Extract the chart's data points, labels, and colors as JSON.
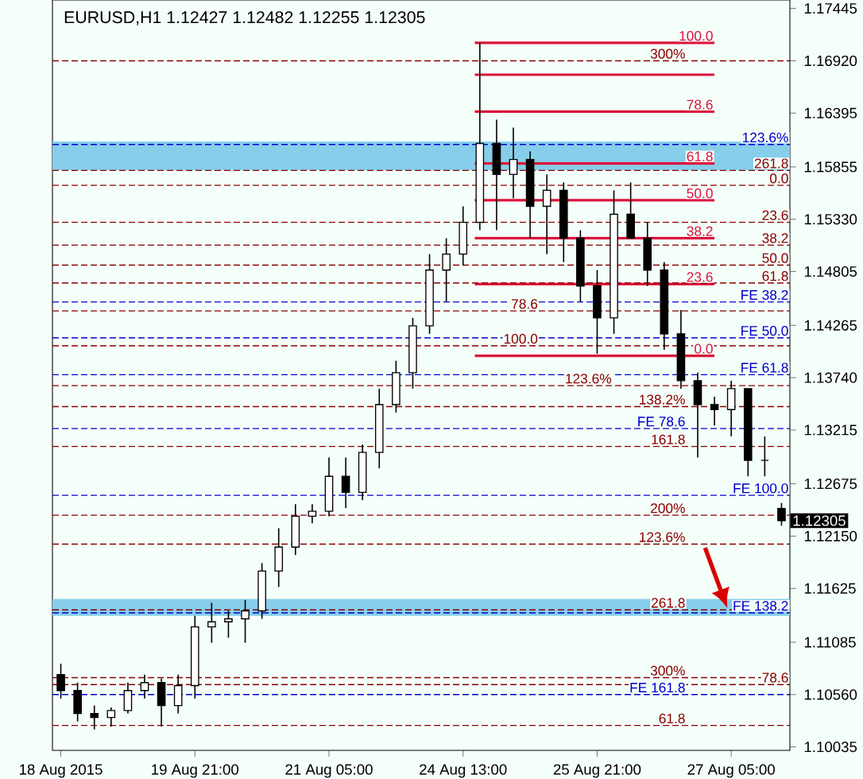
{
  "chart_data": {
    "type": "candlestick",
    "title": "EURUSD,H1  1.12427 1.12482 1.12255 1.12305",
    "categories": [
      "18 Aug 2015",
      null,
      null,
      null,
      null,
      null,
      null,
      null,
      "19 Aug 21:00",
      null,
      null,
      null,
      null,
      null,
      null,
      null,
      "21 Aug 05:00",
      null,
      null,
      null,
      null,
      null,
      null,
      null,
      "24 Aug 13:00",
      null,
      null,
      null,
      null,
      null,
      null,
      null,
      "25 Aug 21:00",
      null,
      null,
      null,
      null,
      null,
      null,
      null,
      "27 Aug 05:00",
      null,
      null,
      null
    ],
    "ohlc": [
      [
        1.1076,
        1.1087,
        1.1052,
        1.106
      ],
      [
        1.106,
        1.1068,
        1.1029,
        1.1037
      ],
      [
        1.1037,
        1.1045,
        1.1021,
        1.1033
      ],
      [
        1.1033,
        1.1043,
        1.1024,
        1.104
      ],
      [
        1.104,
        1.1068,
        1.1037,
        1.106
      ],
      [
        1.106,
        1.1076,
        1.1052,
        1.1068
      ],
      [
        1.1068,
        1.1072,
        1.1024,
        1.1045
      ],
      [
        1.1045,
        1.1076,
        1.1037,
        1.1065
      ],
      [
        1.1065,
        1.1135,
        1.1052,
        1.1124
      ],
      [
        1.1124,
        1.1148,
        1.1108,
        1.1129
      ],
      [
        1.1129,
        1.114,
        1.1113,
        1.1132
      ],
      [
        1.1132,
        1.1151,
        1.1108,
        1.114
      ],
      [
        1.114,
        1.1188,
        1.1132,
        1.118
      ],
      [
        1.118,
        1.1223,
        1.1164,
        1.1204
      ],
      [
        1.1204,
        1.1247,
        1.1196,
        1.1235
      ],
      [
        1.1235,
        1.1247,
        1.1228,
        1.124
      ],
      [
        1.124,
        1.1294,
        1.1235,
        1.1275
      ],
      [
        1.1275,
        1.1294,
        1.1243,
        1.1259
      ],
      [
        1.1259,
        1.1307,
        1.1251,
        1.1299
      ],
      [
        1.1299,
        1.1363,
        1.1283,
        1.1347
      ],
      [
        1.1347,
        1.1391,
        1.1339,
        1.1379
      ],
      [
        1.1379,
        1.1434,
        1.1363,
        1.1426
      ],
      [
        1.1426,
        1.1498,
        1.1418,
        1.1482
      ],
      [
        1.1482,
        1.1514,
        1.145,
        1.1498
      ],
      [
        1.1498,
        1.1546,
        1.1487,
        1.153
      ],
      [
        1.153,
        1.171,
        1.1522,
        1.1609
      ],
      [
        1.1609,
        1.1633,
        1.1522,
        1.1578
      ],
      [
        1.1578,
        1.1625,
        1.1554,
        1.1593
      ],
      [
        1.1593,
        1.1601,
        1.1514,
        1.1546
      ],
      [
        1.1546,
        1.1578,
        1.1498,
        1.1562
      ],
      [
        1.1562,
        1.157,
        1.149,
        1.1514
      ],
      [
        1.1514,
        1.1522,
        1.145,
        1.1466
      ],
      [
        1.1466,
        1.1482,
        1.1398,
        1.1434
      ],
      [
        1.1434,
        1.1562,
        1.1418,
        1.1538
      ],
      [
        1.1538,
        1.157,
        1.1514,
        1.1514
      ],
      [
        1.1514,
        1.153,
        1.1466,
        1.1482
      ],
      [
        1.1482,
        1.149,
        1.1402,
        1.1418
      ],
      [
        1.1418,
        1.1442,
        1.1363,
        1.1371
      ],
      [
        1.1371,
        1.1379,
        1.1294,
        1.1347
      ],
      [
        1.1347,
        1.1355,
        1.1326,
        1.1342
      ],
      [
        1.1342,
        1.1371,
        1.1315,
        1.1363
      ],
      [
        1.1363,
        1.1363,
        1.1275,
        1.1291
      ],
      [
        1.1291,
        1.1315,
        1.1275,
        1.1291
      ],
      [
        1.12427,
        1.12482,
        1.12255,
        1.12305
      ]
    ],
    "color": "#000000",
    "ylim": [
      1.1,
      1.1753
    ],
    "yticks": [
      {
        "value": 1.17445,
        "label": "1.17445"
      },
      {
        "value": 1.1692,
        "label": "1.16920"
      },
      {
        "value": 1.16395,
        "label": "1.16395"
      },
      {
        "value": 1.15855,
        "label": "1.15855"
      },
      {
        "value": 1.1533,
        "label": "1.15330"
      },
      {
        "value": 1.14805,
        "label": "1.14805"
      },
      {
        "value": 1.14265,
        "label": "1.14265"
      },
      {
        "value": 1.1374,
        "label": "1.13740"
      },
      {
        "value": 1.13215,
        "label": "1.13215"
      },
      {
        "value": 1.12675,
        "label": "1.12675"
      },
      {
        "value": 1.1215,
        "label": "1.12150"
      },
      {
        "value": 1.11625,
        "label": "1.11625"
      },
      {
        "value": 1.11085,
        "label": "1.11085"
      },
      {
        "value": 1.1056,
        "label": "1.10560"
      },
      {
        "value": 1.10035,
        "label": "1.10035"
      }
    ],
    "bands": [
      {
        "axis": "y",
        "from": 1.1582,
        "to": 1.1611,
        "color": "#87ceeb"
      },
      {
        "axis": "y",
        "from": 1.1135,
        "to": 1.1152,
        "color": "#87ceeb"
      }
    ],
    "ref_lines": [
      {
        "axis": "y",
        "value": 1.171,
        "color": "#dc143c",
        "line_style": "solid"
      },
      {
        "axis": "y",
        "value": 1.1678,
        "color": "#dc143c",
        "line_style": "solid"
      },
      {
        "axis": "y",
        "value": 1.1641,
        "color": "#dc143c",
        "line_style": "solid"
      },
      {
        "axis": "y",
        "value": 1.1589,
        "color": "#dc143c",
        "line_style": "solid"
      },
      {
        "axis": "y",
        "value": 1.1552,
        "color": "#dc143c",
        "line_style": "solid"
      },
      {
        "axis": "y",
        "value": 1.1514,
        "color": "#dc143c",
        "line_style": "solid"
      },
      {
        "axis": "y",
        "value": 1.1468,
        "color": "#dc143c",
        "line_style": "solid"
      },
      {
        "axis": "y",
        "value": 1.1396,
        "color": "#dc143c",
        "line_style": "solid"
      },
      {
        "axis": "y",
        "value": 1.1692,
        "color": "#8b0000",
        "line_style": "dashed"
      },
      {
        "axis": "y",
        "value": 1.1608,
        "color": "#0000cd",
        "line_style": "dashed"
      },
      {
        "axis": "y",
        "value": 1.1582,
        "color": "#8b0000",
        "line_style": "dashed"
      },
      {
        "axis": "y",
        "value": 1.1567,
        "color": "#8b0000",
        "line_style": "dashed"
      },
      {
        "axis": "y",
        "value": 1.153,
        "color": "#8b0000",
        "line_style": "dashed"
      },
      {
        "axis": "y",
        "value": 1.1507,
        "color": "#8b0000",
        "line_style": "dashed"
      },
      {
        "axis": "y",
        "value": 1.1487,
        "color": "#8b0000",
        "line_style": "dashed"
      },
      {
        "axis": "y",
        "value": 1.1469,
        "color": "#8b0000",
        "line_style": "dashed"
      },
      {
        "axis": "y",
        "value": 1.145,
        "color": "#0000cd",
        "line_style": "dashed"
      },
      {
        "axis": "y",
        "value": 1.1441,
        "color": "#8b0000",
        "line_style": "dashed"
      },
      {
        "axis": "y",
        "value": 1.1414,
        "color": "#0000cd",
        "line_style": "dashed"
      },
      {
        "axis": "y",
        "value": 1.1406,
        "color": "#8b0000",
        "line_style": "dashed"
      },
      {
        "axis": "y",
        "value": 1.1377,
        "color": "#0000cd",
        "line_style": "dashed"
      },
      {
        "axis": "y",
        "value": 1.1366,
        "color": "#8b0000",
        "line_style": "dashed"
      },
      {
        "axis": "y",
        "value": 1.1345,
        "color": "#8b0000",
        "line_style": "dashed"
      },
      {
        "axis": "y",
        "value": 1.1323,
        "color": "#0000cd",
        "line_style": "dashed"
      },
      {
        "axis": "y",
        "value": 1.1305,
        "color": "#8b0000",
        "line_style": "dashed"
      },
      {
        "axis": "y",
        "value": 1.1256,
        "color": "#0000cd",
        "line_style": "dashed"
      },
      {
        "axis": "y",
        "value": 1.1236,
        "color": "#8b0000",
        "line_style": "dashed"
      },
      {
        "axis": "y",
        "value": 1.1207,
        "color": "#8b0000",
        "line_style": "dashed"
      },
      {
        "axis": "y",
        "value": 1.1141,
        "color": "#8b0000",
        "line_style": "dashed"
      },
      {
        "axis": "y",
        "value": 1.1138,
        "color": "#0000cd",
        "line_style": "dashed"
      },
      {
        "axis": "y",
        "value": 1.1073,
        "color": "#8b0000",
        "line_style": "dashed"
      },
      {
        "axis": "y",
        "value": 1.1066,
        "color": "#8b0000",
        "line_style": "dashed"
      },
      {
        "axis": "y",
        "value": 1.1056,
        "color": "#0000cd",
        "line_style": "dashed"
      },
      {
        "axis": "y",
        "value": 1.1025,
        "color": "#8b0000",
        "line_style": "dashed"
      }
    ],
    "annotations": [
      "1.12305",
      {
        "text": "100.0",
        "y": 1.171
      },
      {
        "text": "78.6",
        "y": 1.1641
      },
      {
        "text": "61.8",
        "y": 1.1589
      },
      {
        "text": "50.0",
        "y": 1.1552
      },
      {
        "text": "38.2",
        "y": 1.1514
      },
      {
        "text": "23.6",
        "y": 1.1468
      },
      {
        "text": "0.0",
        "y": 1.1396
      },
      {
        "text": "300%",
        "y": 1.1692
      },
      {
        "text": "123.6%",
        "y": 1.1608
      },
      {
        "text": "261.8",
        "y": 1.1582
      },
      {
        "text": "0.0",
        "y": 1.1567
      },
      {
        "text": "23.6",
        "y": 1.153
      },
      {
        "text": "38.2",
        "y": 1.1507
      },
      {
        "text": "50.0",
        "y": 1.1487
      },
      {
        "text": "61.8",
        "y": 1.1469
      },
      {
        "text": "FE 38.2",
        "y": 1.145
      },
      {
        "text": "78.6",
        "y": 1.1441
      },
      {
        "text": "FE 50.0",
        "y": 1.1414
      },
      {
        "text": "100.0",
        "y": 1.1406
      },
      {
        "text": "FE 61.8",
        "y": 1.1377
      },
      {
        "text": "123.6%",
        "y": 1.1366
      },
      {
        "text": "138.2%",
        "y": 1.1345
      },
      {
        "text": "FE 78.6",
        "y": 1.1323
      },
      {
        "text": "161.8",
        "y": 1.1305
      },
      {
        "text": "FE 100.0",
        "y": 1.1256
      },
      {
        "text": "200%",
        "y": 1.1236
      },
      {
        "text": "123.6%",
        "y": 1.1207
      },
      {
        "text": "261.8",
        "y": 1.1141
      },
      {
        "text": "FE 138.2",
        "y": 1.1138
      },
      {
        "text": "300%",
        "y": 1.1073
      },
      {
        "text": "78.6",
        "y": 1.1066
      },
      {
        "text": "FE 161.8",
        "y": 1.1056
      },
      {
        "text": "61.8",
        "y": 1.1025
      }
    ],
    "grid": false
  }
}
